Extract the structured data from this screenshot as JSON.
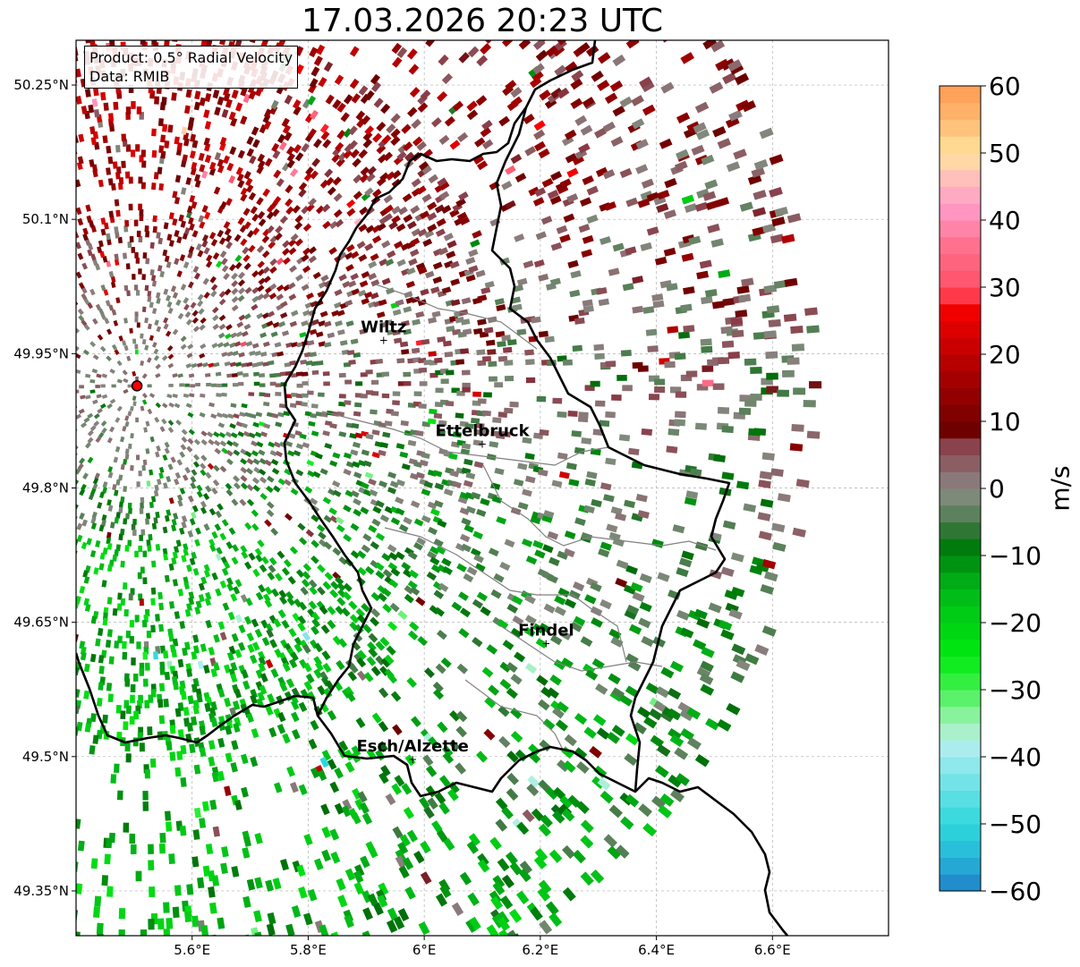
{
  "title": "17.03.2026 20:23 UTC",
  "info": {
    "product": "Product: 0.5° Radial Velocity",
    "source": "Data: RMIB"
  },
  "map": {
    "extent": {
      "lon": [
        5.4,
        6.8
      ],
      "lat": [
        49.3,
        50.3
      ]
    },
    "lat_ticks": [
      {
        "value": 50.25,
        "label": "50.25°N"
      },
      {
        "value": 50.1,
        "label": "50.1°N"
      },
      {
        "value": 49.95,
        "label": "49.95°N"
      },
      {
        "value": 49.8,
        "label": "49.8°N"
      },
      {
        "value": 49.65,
        "label": "49.65°N"
      },
      {
        "value": 49.5,
        "label": "49.5°N"
      },
      {
        "value": 49.35,
        "label": "49.35°N"
      }
    ],
    "lon_ticks": [
      {
        "value": 5.6,
        "label": "5.6°E"
      },
      {
        "value": 5.8,
        "label": "5.8°E"
      },
      {
        "value": 6.0,
        "label": "6°E"
      },
      {
        "value": 6.2,
        "label": "6.2°E"
      },
      {
        "value": 6.4,
        "label": "6.4°E"
      },
      {
        "value": 6.6,
        "label": "6.6°E"
      }
    ],
    "gridlines": true,
    "radar_site": {
      "lon": 5.505,
      "lat": 49.914
    },
    "cities": [
      {
        "name": "Wiltz",
        "lon": 5.93,
        "lat": 49.966
      },
      {
        "name": "Ettelbruck",
        "lon": 6.1,
        "lat": 49.85
      },
      {
        "name": "Findel",
        "lon": 6.21,
        "lat": 49.627
      },
      {
        "name": "Esch/Alzette",
        "lon": 5.98,
        "lat": 49.498
      }
    ],
    "colors": {
      "radar_site": "#ff0000",
      "border": "#000000",
      "canton": "#808080",
      "grid": "#b0b0b0"
    }
  },
  "colorbar": {
    "label": "m/s",
    "vmin": -60,
    "vmax": 60,
    "ticks": [
      {
        "value": 60,
        "label": "60"
      },
      {
        "value": 50,
        "label": "50"
      },
      {
        "value": 40,
        "label": "40"
      },
      {
        "value": 30,
        "label": "30"
      },
      {
        "value": 20,
        "label": "20"
      },
      {
        "value": 10,
        "label": "10"
      },
      {
        "value": 0,
        "label": "0"
      },
      {
        "value": -10,
        "label": "−10"
      },
      {
        "value": -20,
        "label": "−20"
      },
      {
        "value": -30,
        "label": "−30"
      },
      {
        "value": -40,
        "label": "−40"
      },
      {
        "value": -50,
        "label": "−50"
      },
      {
        "value": -60,
        "label": "−60"
      }
    ],
    "stops": [
      {
        "v": -60,
        "c": "#1f7fc8"
      },
      {
        "v": -55,
        "c": "#27b6d6"
      },
      {
        "v": -50,
        "c": "#2ed8dc"
      },
      {
        "v": -42,
        "c": "#86e6ea"
      },
      {
        "v": -38,
        "c": "#b4eef0"
      },
      {
        "v": -36,
        "c": "#a8f0c4"
      },
      {
        "v": -33,
        "c": "#7ef28e"
      },
      {
        "v": -30,
        "c": "#44f050"
      },
      {
        "v": -25,
        "c": "#00ea10"
      },
      {
        "v": -15,
        "c": "#00b818"
      },
      {
        "v": -7,
        "c": "#006a08"
      },
      {
        "v": -6,
        "c": "#3f7a42"
      },
      {
        "v": -1,
        "c": "#808a7c"
      },
      {
        "v": 1,
        "c": "#8a7c7c"
      },
      {
        "v": 7,
        "c": "#8a3a46"
      },
      {
        "v": 8,
        "c": "#6a0000"
      },
      {
        "v": 18,
        "c": "#b00000"
      },
      {
        "v": 28,
        "c": "#ff0000"
      },
      {
        "v": 29,
        "c": "#ff4c62"
      },
      {
        "v": 36,
        "c": "#ff6f8c"
      },
      {
        "v": 42,
        "c": "#ff9cc8"
      },
      {
        "v": 46,
        "c": "#ffbcbc"
      },
      {
        "v": 50,
        "c": "#ffe49c"
      },
      {
        "v": 55,
        "c": "#ffb870"
      },
      {
        "v": 60,
        "c": "#ff9a52"
      }
    ]
  }
}
